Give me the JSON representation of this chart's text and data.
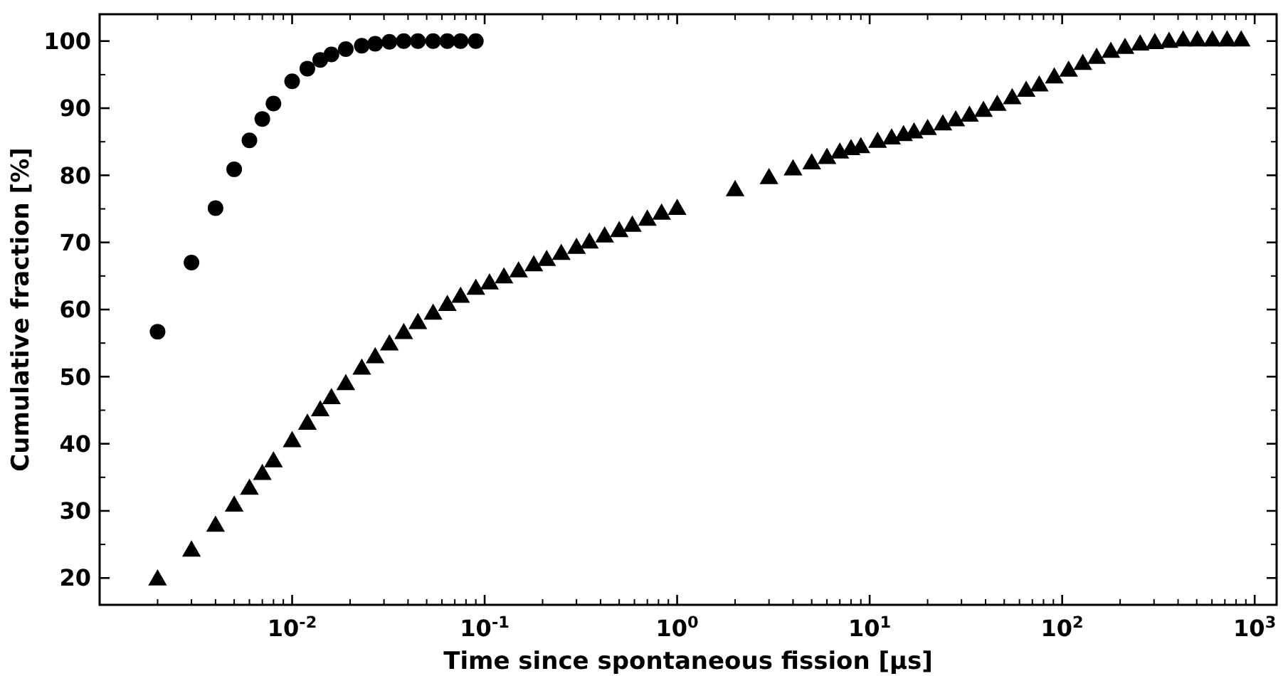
{
  "chart_data": {
    "type": "scatter",
    "xlabel": "Time since spontaneous fission [μs]",
    "ylabel": "Cumulative fraction [%]",
    "log": "x",
    "xlim": [
      0.001,
      1300
    ],
    "ylim": [
      16,
      104
    ],
    "xticks": [
      {
        "value": 0.01,
        "label": "10$^{-2}$"
      },
      {
        "value": 0.1,
        "label": "10$^{-1}$"
      },
      {
        "value": 1,
        "label": "10$^{0}$"
      },
      {
        "value": 10,
        "label": "10$^{1}$"
      },
      {
        "value": 100,
        "label": "10$^{2}$"
      },
      {
        "value": 1000,
        "label": "10$^{3}$"
      }
    ],
    "yticks": [
      20,
      30,
      40,
      50,
      60,
      70,
      80,
      90,
      100
    ],
    "grid": false,
    "series": [
      {
        "color": "#000000",
        "marker": "circle",
        "x": [
          0.002,
          0.003,
          0.004,
          0.005,
          0.006,
          0.007,
          0.008,
          0.01,
          0.012,
          0.014,
          0.016,
          0.019,
          0.023,
          0.027,
          0.032,
          0.038,
          0.045,
          0.054,
          0.064,
          0.075,
          0.09
        ],
        "values": [
          56.7,
          67.0,
          75.1,
          80.9,
          85.2,
          88.4,
          90.7,
          94.0,
          95.9,
          97.2,
          98.0,
          98.8,
          99.3,
          99.6,
          99.9,
          100,
          100,
          100,
          100,
          100,
          100
        ]
      },
      {
        "color": "#000000",
        "marker": "triangle",
        "x": [
          0.002,
          0.003,
          0.004,
          0.005,
          0.006,
          0.007,
          0.008,
          0.01,
          0.012,
          0.014,
          0.016,
          0.019,
          0.023,
          0.027,
          0.032,
          0.038,
          0.045,
          0.054,
          0.064,
          0.075,
          0.09,
          0.106,
          0.126,
          0.15,
          0.18,
          0.21,
          0.25,
          0.3,
          0.35,
          0.42,
          0.5,
          0.585,
          0.7,
          0.83,
          1.0,
          2,
          3,
          4,
          5,
          6,
          7,
          8,
          9,
          11,
          13,
          15,
          17,
          20,
          24,
          28,
          33,
          39,
          46,
          55,
          65,
          76,
          91,
          108,
          128,
          151,
          179,
          212,
          254,
          303,
          359,
          425,
          504,
          603,
          719,
          851
        ],
        "values": [
          19.7,
          24.0,
          27.7,
          30.7,
          33.2,
          35.4,
          37.3,
          40.3,
          42.9,
          44.9,
          46.7,
          48.8,
          51.1,
          52.8,
          54.7,
          56.4,
          57.9,
          59.3,
          60.6,
          61.8,
          63.0,
          63.8,
          64.7,
          65.6,
          66.5,
          67.3,
          68.2,
          69.1,
          69.9,
          70.8,
          71.6,
          72.4,
          73.3,
          74.2,
          74.9,
          77.7,
          79.5,
          80.8,
          81.7,
          82.5,
          83.3,
          83.8,
          84.1,
          84.9,
          85.4,
          85.9,
          86.3,
          86.8,
          87.5,
          88.1,
          88.8,
          89.5,
          90.4,
          91.4,
          92.5,
          93.3,
          94.5,
          95.5,
          96.5,
          97.4,
          98.3,
          98.9,
          99.4,
          99.6,
          99.8,
          100,
          100,
          100,
          100,
          100
        ]
      }
    ]
  }
}
